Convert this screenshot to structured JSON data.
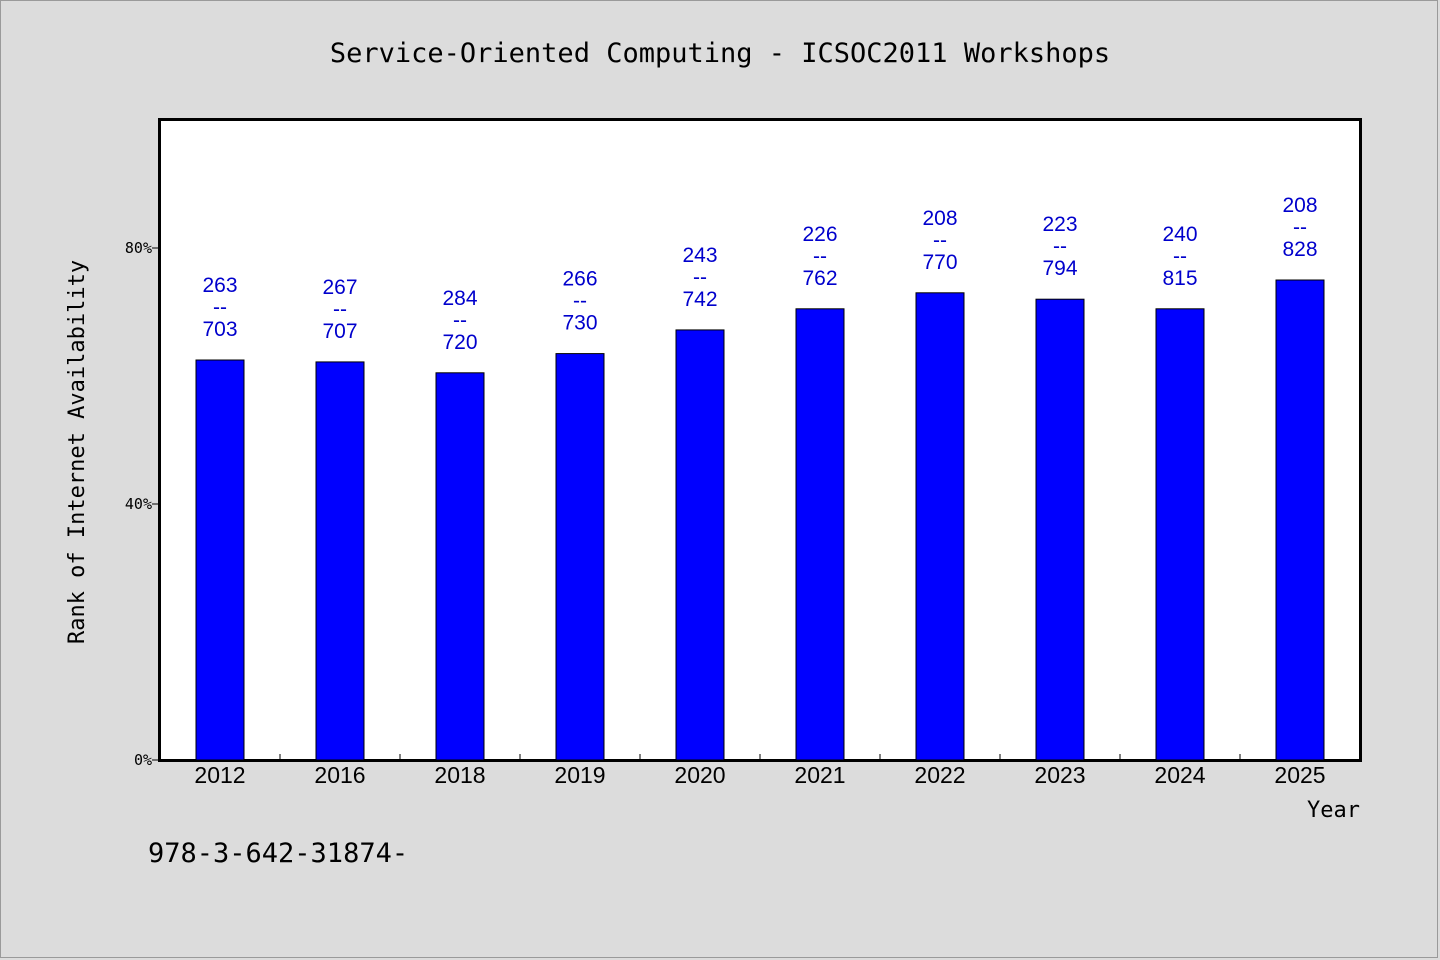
{
  "chart_data": {
    "type": "bar",
    "title": "Service-Oriented Computing - ICSOC2011 Workshops",
    "xlabel": "Year",
    "ylabel": "Rank of Internet Availability",
    "categories": [
      "2012",
      "2016",
      "2018",
      "2019",
      "2020",
      "2021",
      "2022",
      "2023",
      "2024",
      "2025"
    ],
    "series": [
      {
        "values": [
          62.5,
          62.2,
          60.5,
          63.5,
          67.2,
          70.5,
          73.0,
          72.0,
          70.5,
          75.0
        ],
        "labels_top": [
          "263",
          "267",
          "284",
          "266",
          "243",
          "226",
          "208",
          "223",
          "240",
          "208"
        ],
        "labels_bottom": [
          "703",
          "707",
          "720",
          "730",
          "742",
          "762",
          "770",
          "794",
          "815",
          "828"
        ]
      }
    ],
    "label_separator": "--",
    "ylim": [
      0,
      100
    ],
    "yticks": [
      0,
      40,
      80
    ],
    "ytick_labels": [
      "0%",
      "40%",
      "80%"
    ],
    "grid": false,
    "bar_color": "#0000ff",
    "label_color": "#0000cc"
  },
  "footnote": "978-3-642-31874-"
}
